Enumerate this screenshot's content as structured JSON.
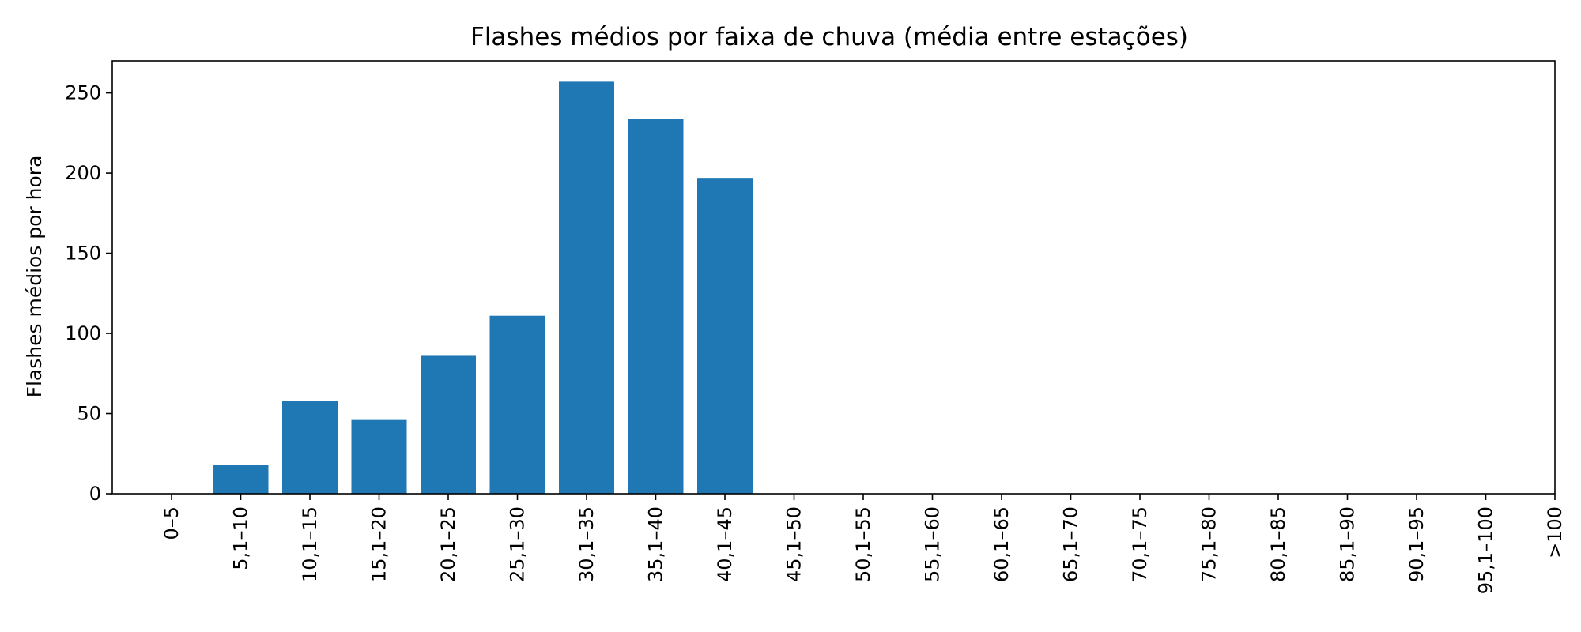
{
  "chart_data": {
    "type": "bar",
    "title": "Flashes médios por faixa de chuva (média entre estações)",
    "xlabel": "",
    "ylabel": "Flashes médios por hora",
    "categories": [
      "0–5",
      "5,1–10",
      "10,1–15",
      "15,1–20",
      "20,1–25",
      "25,1–30",
      "30,1–35",
      "35,1–40",
      "40,1–45",
      "45,1–50",
      "50,1–55",
      "55,1–60",
      "60,1–65",
      "65,1–70",
      "70,1–75",
      "75,1–80",
      "80,1–85",
      "85,1–90",
      "90,1–95",
      "95,1–100",
      ">100"
    ],
    "values": [
      0,
      18,
      58,
      46,
      86,
      111,
      257,
      234,
      197,
      0,
      0,
      0,
      0,
      0,
      0,
      0,
      0,
      0,
      0,
      0,
      0
    ],
    "ylim": [
      0,
      270
    ],
    "yticks": [
      0,
      50,
      100,
      150,
      200,
      250
    ],
    "bar_color": "#1f77b4",
    "grid": false,
    "legend": "none"
  }
}
